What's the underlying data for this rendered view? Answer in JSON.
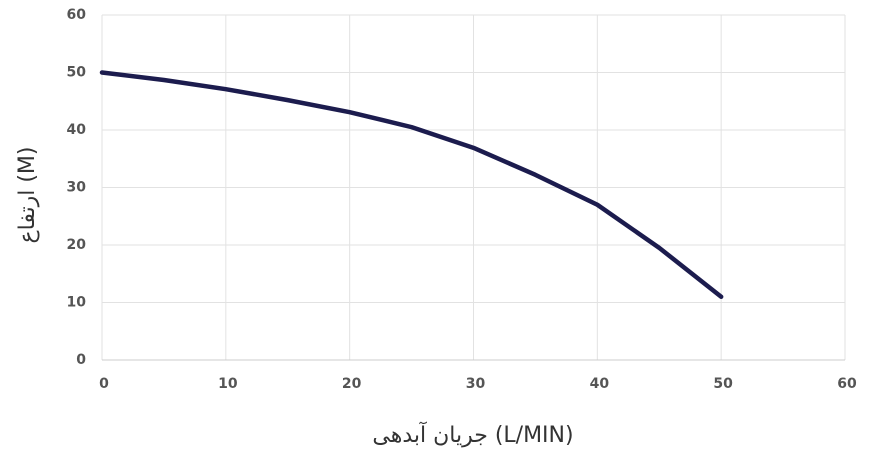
{
  "chart_data": {
    "type": "line",
    "xlabel": "جریان آبدهی (L/MIN)",
    "ylabel": "ارتفاع (M)",
    "x": [
      0,
      5,
      10,
      15,
      20,
      25,
      30,
      35,
      40,
      45,
      50
    ],
    "series": [
      {
        "color": "#1c1c4e",
        "values": [
          50,
          48.7,
          47.1,
          45.2,
          43.1,
          40.5,
          36.9,
          32.2,
          27,
          19.5,
          11
        ]
      }
    ],
    "xlim": [
      0,
      60
    ],
    "xticks": [
      0,
      10,
      20,
      30,
      40,
      50,
      60
    ],
    "ylim": [
      0,
      60
    ],
    "yticks": [
      0,
      10,
      20,
      30,
      40,
      50,
      60
    ],
    "grid": true
  }
}
